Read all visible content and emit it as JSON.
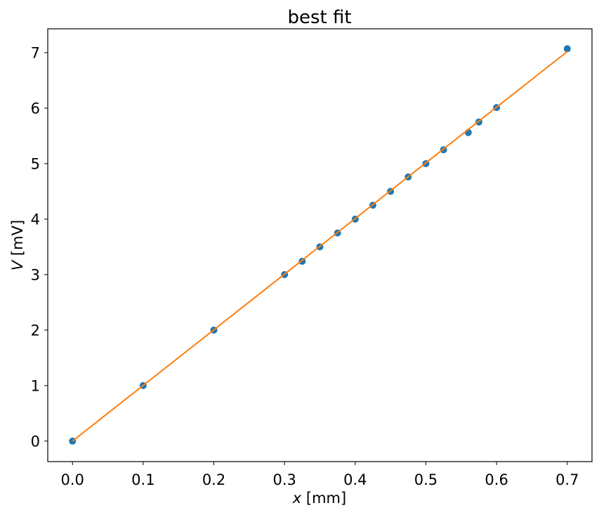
{
  "chart_data": {
    "type": "scatter",
    "title": "best fit",
    "xlabel": "x [mm]",
    "ylabel": "V [mV]",
    "xlabel_var": "x",
    "xlabel_unit": " [mm]",
    "ylabel_var": "V",
    "ylabel_unit": " [mV]",
    "xlim": [
      -0.035,
      0.735
    ],
    "ylim": [
      -0.37,
      7.43
    ],
    "xticks": [
      0.0,
      0.1,
      0.2,
      0.3,
      0.4,
      0.5,
      0.6,
      0.7
    ],
    "xtick_labels": [
      "0.0",
      "0.1",
      "0.2",
      "0.3",
      "0.4",
      "0.5",
      "0.6",
      "0.7"
    ],
    "yticks": [
      0,
      1,
      2,
      3,
      4,
      5,
      6,
      7
    ],
    "ytick_labels": [
      "0",
      "1",
      "2",
      "3",
      "4",
      "5",
      "6",
      "7"
    ],
    "grid": false,
    "legend": null,
    "series": [
      {
        "name": "data",
        "type": "scatter",
        "color": "#1f77b4",
        "x": [
          0.0,
          0.1,
          0.2,
          0.3,
          0.325,
          0.35,
          0.375,
          0.4,
          0.425,
          0.45,
          0.475,
          0.5,
          0.525,
          0.56,
          0.575,
          0.6,
          0.7
        ],
        "y": [
          0.0,
          1.0,
          2.0,
          3.0,
          3.24,
          3.5,
          3.75,
          4.0,
          4.25,
          4.5,
          4.76,
          5.0,
          5.25,
          5.56,
          5.75,
          6.01,
          7.07
        ]
      },
      {
        "name": "best fit",
        "type": "line",
        "color": "#ff7f0e",
        "x": [
          0.0,
          0.7
        ],
        "y": [
          0.0,
          7.02
        ]
      }
    ]
  }
}
